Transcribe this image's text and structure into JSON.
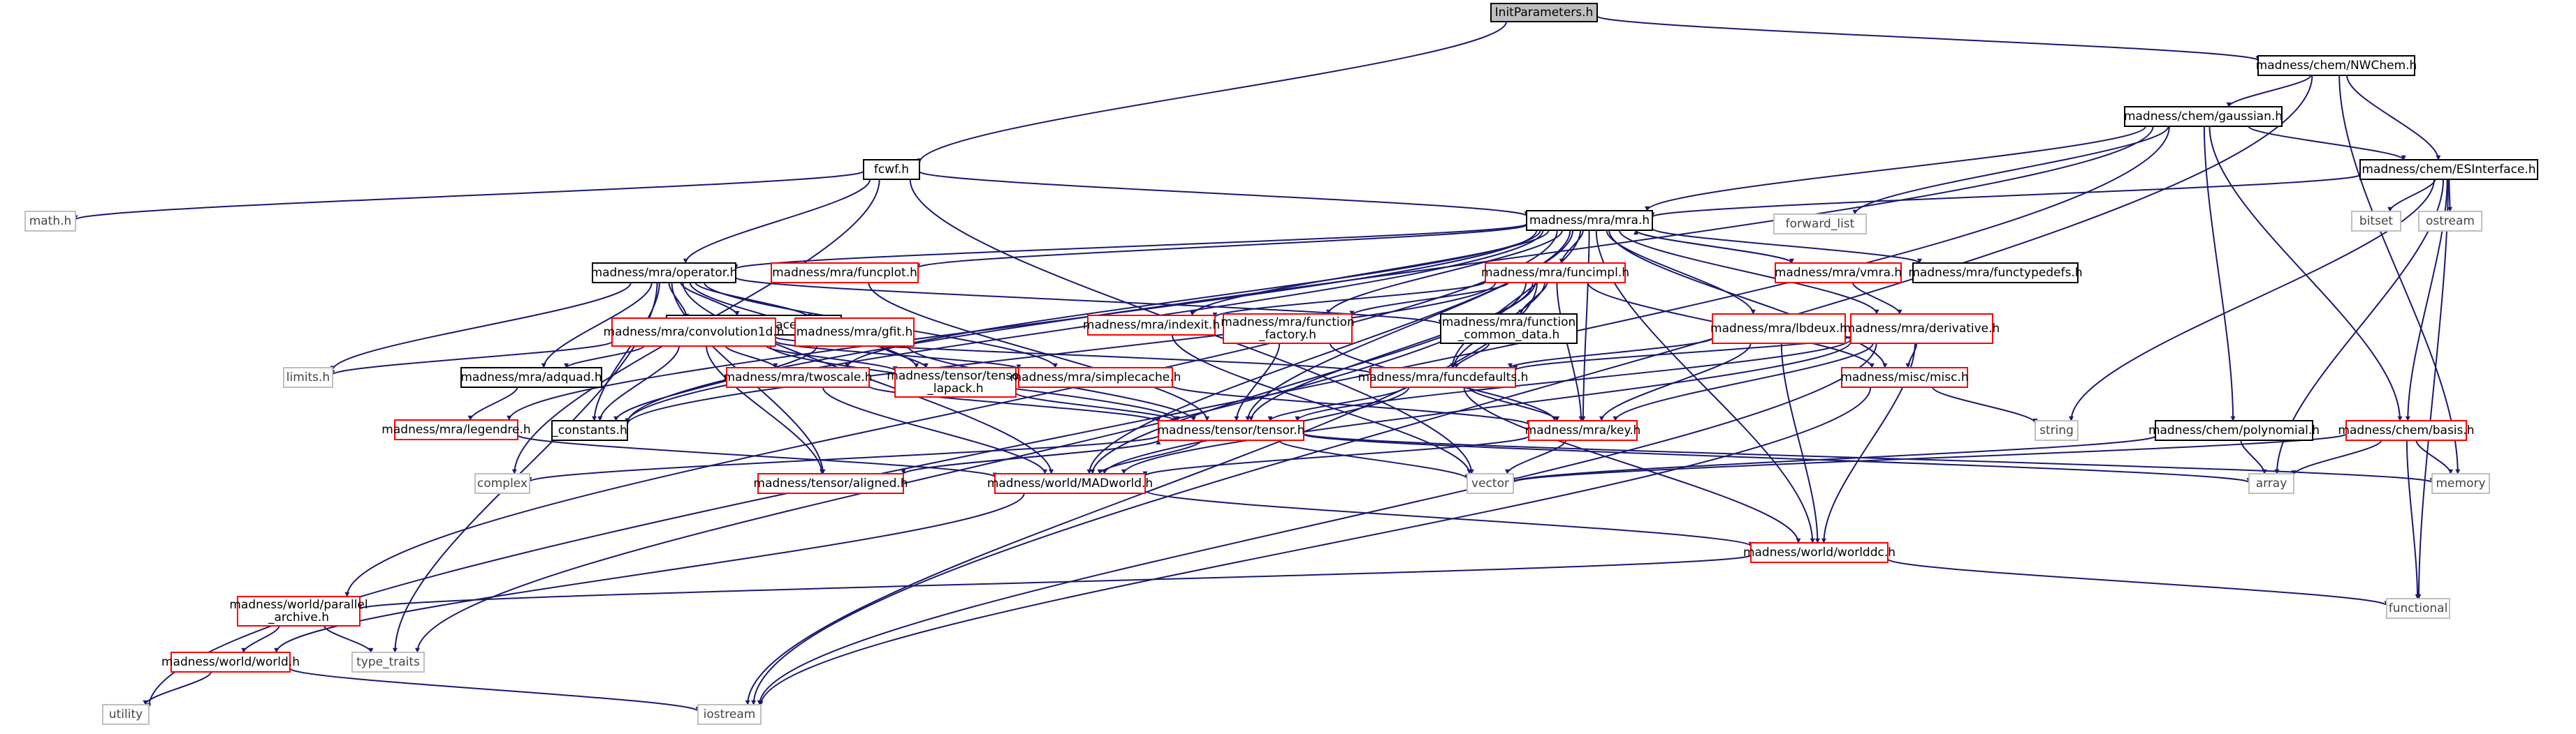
{
  "diagram": {
    "type": "include-dependency-graph",
    "colors": {
      "edge": "#191970",
      "root_fill": "#bfbfbf",
      "node_border_documented": "#000000",
      "node_border_incomplete": "#ff0000",
      "node_border_system": "#bfbfbf",
      "node_text": "#000000",
      "system_text": "#444444"
    },
    "nodes": [
      {
        "id": "n_initparams",
        "label": "InitParameters.h",
        "kind": "root"
      },
      {
        "id": "n_nwchem",
        "label": "madness/chem/NWChem.h",
        "kind": "documented"
      },
      {
        "id": "n_gaussian",
        "label": "madness/chem/gaussian.h",
        "kind": "documented"
      },
      {
        "id": "n_fcwf",
        "label": "fcwf.h",
        "kind": "documented"
      },
      {
        "id": "n_esinterface",
        "label": "madness/chem/ESInterface.h",
        "kind": "documented"
      },
      {
        "id": "n_forwardlist",
        "label": "forward_list",
        "kind": "system"
      },
      {
        "id": "n_math",
        "label": "math.h",
        "kind": "system"
      },
      {
        "id": "n_mra",
        "label": "madness/mra/mra.h",
        "kind": "documented"
      },
      {
        "id": "n_bitset",
        "label": "bitset",
        "kind": "system"
      },
      {
        "id": "n_ostream",
        "label": "ostream",
        "kind": "system"
      },
      {
        "id": "n_operator",
        "label": "madness/mra/operator.h",
        "kind": "documented"
      },
      {
        "id": "n_funcplot",
        "label": "madness/mra/funcplot.h",
        "kind": "incomplete"
      },
      {
        "id": "n_funcimpl",
        "label": "madness/mra/funcimpl.h",
        "kind": "incomplete"
      },
      {
        "id": "n_vmra",
        "label": "madness/mra/vmra.h",
        "kind": "incomplete"
      },
      {
        "id": "n_functypedefs",
        "label": "madness/mra/functypedefs.h",
        "kind": "documented"
      },
      {
        "id": "n_displacements",
        "label": "madness/mra/displacements.h",
        "kind": "documented"
      },
      {
        "id": "n_convolution1d",
        "label": "madness/mra/convolution1d.h",
        "kind": "incomplete"
      },
      {
        "id": "n_gfit",
        "label": "madness/mra/gfit.h",
        "kind": "incomplete"
      },
      {
        "id": "n_indexit",
        "label": "madness/mra/indexit.h",
        "kind": "incomplete"
      },
      {
        "id": "n_funcfactory",
        "label_lines": [
          "madness/mra/function",
          "_factory.h"
        ],
        "kind": "incomplete"
      },
      {
        "id": "n_funccommon",
        "label_lines": [
          "madness/mra/function",
          "_common_data.h"
        ],
        "kind": "documented"
      },
      {
        "id": "n_lbdeux",
        "label": "madness/mra/lbdeux.h",
        "kind": "incomplete"
      },
      {
        "id": "n_derivative",
        "label": "madness/mra/derivative.h",
        "kind": "incomplete"
      },
      {
        "id": "n_limits",
        "label": "limits.h",
        "kind": "system"
      },
      {
        "id": "n_adquad",
        "label": "madness/mra/adquad.h",
        "kind": "documented"
      },
      {
        "id": "n_constants",
        "label": "_constants.h",
        "kind": "documented"
      },
      {
        "id": "n_twoscale",
        "label": "madness/mra/twoscale.h",
        "kind": "incomplete"
      },
      {
        "id": "n_lapack",
        "label_lines": [
          "madness/tensor/tensor",
          "_lapack.h"
        ],
        "kind": "incomplete"
      },
      {
        "id": "n_simplecache",
        "label": "madness/mra/simplecache.h",
        "kind": "incomplete"
      },
      {
        "id": "n_funcdefaults",
        "label": "madness/mra/funcdefaults.h",
        "kind": "incomplete"
      },
      {
        "id": "n_misc",
        "label": "madness/misc/misc.h",
        "kind": "incomplete"
      },
      {
        "id": "n_legendre",
        "label": "madness/mra/legendre.h",
        "kind": "incomplete"
      },
      {
        "id": "n_tensor",
        "label": "madness/tensor/tensor.h",
        "kind": "incomplete"
      },
      {
        "id": "n_key",
        "label": "madness/mra/key.h",
        "kind": "incomplete"
      },
      {
        "id": "n_string",
        "label": "string",
        "kind": "system"
      },
      {
        "id": "n_polynomial",
        "label": "madness/chem/polynomial.h",
        "kind": "documented"
      },
      {
        "id": "n_basis",
        "label": "madness/chem/basis.h",
        "kind": "incomplete"
      },
      {
        "id": "n_complex",
        "label": "complex",
        "kind": "system"
      },
      {
        "id": "n_aligned",
        "label": "madness/tensor/aligned.h",
        "kind": "incomplete"
      },
      {
        "id": "n_madworld",
        "label": "madness/world/MADworld.h",
        "kind": "incomplete"
      },
      {
        "id": "n_vector",
        "label": "vector",
        "kind": "system"
      },
      {
        "id": "n_array",
        "label": "array",
        "kind": "system"
      },
      {
        "id": "n_memory",
        "label": "memory",
        "kind": "system"
      },
      {
        "id": "n_worlddc",
        "label": "madness/world/worlddc.h",
        "kind": "incomplete"
      },
      {
        "id": "n_parchive",
        "label_lines": [
          "madness/world/parallel",
          "_archive.h"
        ],
        "kind": "incomplete"
      },
      {
        "id": "n_functional",
        "label": "functional",
        "kind": "system"
      },
      {
        "id": "n_world",
        "label": "madness/world/world.h",
        "kind": "incomplete"
      },
      {
        "id": "n_typetraits",
        "label": "type_traits",
        "kind": "system"
      },
      {
        "id": "n_utility",
        "label": "utility",
        "kind": "system"
      },
      {
        "id": "n_iostream",
        "label": "iostream",
        "kind": "system"
      }
    ]
  }
}
